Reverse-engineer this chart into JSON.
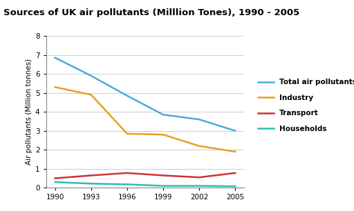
{
  "title": "Sources of UK air pollutants (Milllion Tones), 1990 - 2005",
  "ylabel": "Air pollutants (Million tonnes)",
  "years": [
    1990,
    1993,
    1996,
    1999,
    2002,
    2005
  ],
  "series": [
    {
      "label": "Total air pollutants",
      "color": "#4AABDB",
      "values": [
        6.85,
        5.9,
        4.85,
        3.85,
        3.6,
        3.0
      ]
    },
    {
      "label": "Industry",
      "color": "#E8A020",
      "values": [
        5.3,
        4.9,
        2.85,
        2.8,
        2.2,
        1.9
      ]
    },
    {
      "label": "Transport",
      "color": "#CC3333",
      "values": [
        0.5,
        0.65,
        0.78,
        0.65,
        0.55,
        0.78
      ]
    },
    {
      "label": "Households",
      "color": "#2DBFAA",
      "values": [
        0.3,
        0.22,
        0.18,
        0.1,
        0.1,
        0.08
      ]
    }
  ],
  "ylim": [
    0,
    8
  ],
  "yticks": [
    0,
    1,
    2,
    3,
    4,
    5,
    6,
    7,
    8
  ],
  "background_color": "#FFFFFF",
  "title_fontsize": 9.5,
  "ylabel_fontsize": 7.5,
  "tick_fontsize": 7.5,
  "legend_fontsize": 7.5,
  "linewidth": 1.8
}
